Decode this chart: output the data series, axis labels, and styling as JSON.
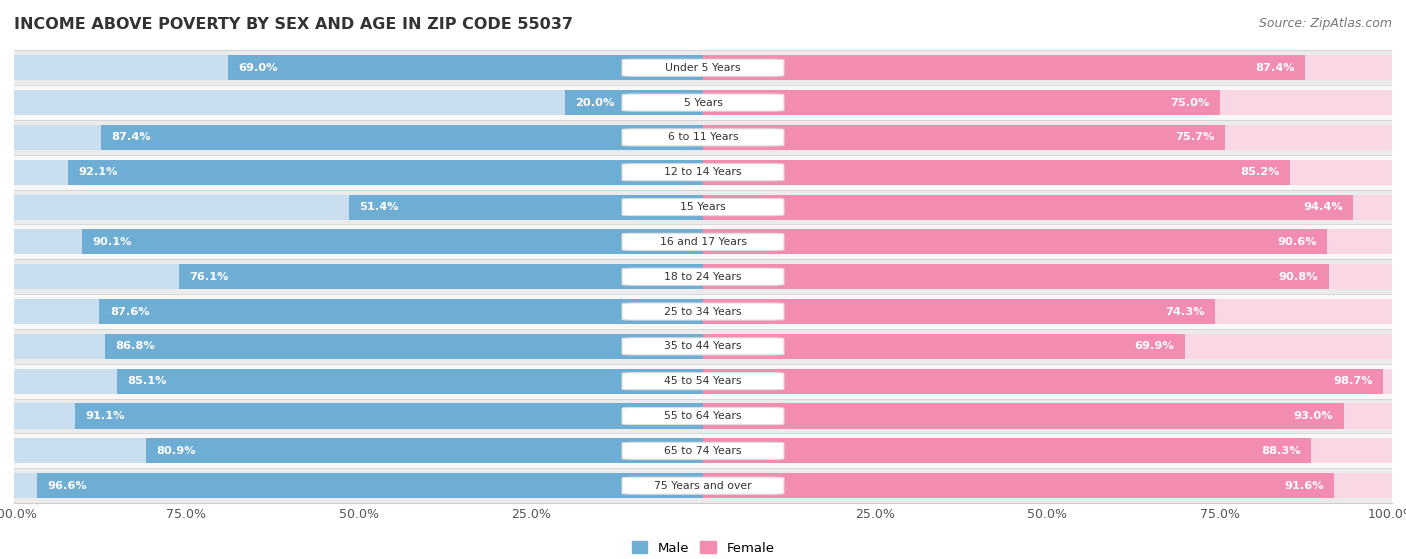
{
  "title": "INCOME ABOVE POVERTY BY SEX AND AGE IN ZIP CODE 55037",
  "source": "Source: ZipAtlas.com",
  "categories": [
    "Under 5 Years",
    "5 Years",
    "6 to 11 Years",
    "12 to 14 Years",
    "15 Years",
    "16 and 17 Years",
    "18 to 24 Years",
    "25 to 34 Years",
    "35 to 44 Years",
    "45 to 54 Years",
    "55 to 64 Years",
    "65 to 74 Years",
    "75 Years and over"
  ],
  "male_values": [
    69.0,
    20.0,
    87.4,
    92.1,
    51.4,
    90.1,
    76.1,
    87.6,
    86.8,
    85.1,
    91.1,
    80.9,
    96.6
  ],
  "female_values": [
    87.4,
    75.0,
    75.7,
    85.2,
    94.4,
    90.6,
    90.8,
    74.3,
    69.9,
    98.7,
    93.0,
    88.3,
    91.6
  ],
  "male_color": "#6eadd4",
  "female_color": "#f28cb1",
  "male_light_color": "#c9dff0",
  "female_light_color": "#fad7e5",
  "row_bg_odd": "#ebebeb",
  "row_bg_even": "#f8f8f8",
  "title_fontsize": 11.5,
  "tick_fontsize": 9,
  "source_fontsize": 9
}
